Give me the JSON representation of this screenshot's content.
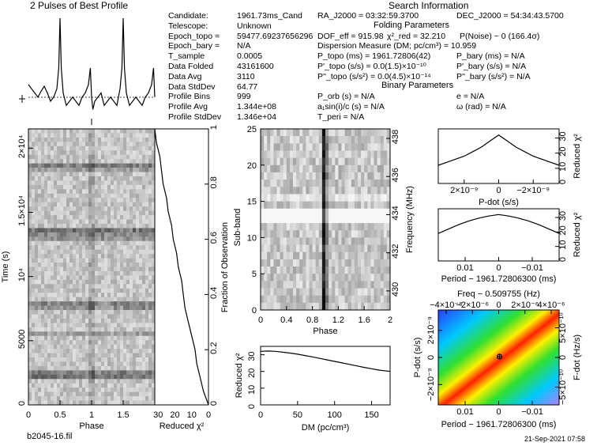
{
  "header": {
    "title": "2 Pulses of Best Profile",
    "search_info": "Search Information",
    "folding": "Folding Parameters",
    "binary": "Binary Parameters"
  },
  "params_left": [
    {
      "label": "Candidate:",
      "value": "1961.73ms_Cand"
    },
    {
      "label": "Telescope:",
      "value": "Unknown"
    },
    {
      "label": "Epoch_topo =",
      "value": "59477.69237656296"
    },
    {
      "label": "Epoch_bary =",
      "value": "N/A"
    },
    {
      "label": "T_sample",
      "value": "0.0005"
    },
    {
      "label": "Data Folded",
      "value": "43161600"
    },
    {
      "label": "Data Avg",
      "value": "3110"
    },
    {
      "label": "Data StdDev",
      "value": "64.77"
    },
    {
      "label": "Profile Bins",
      "value": "999"
    },
    {
      "label": "Profile Avg",
      "value": "1.344e+08"
    },
    {
      "label": "Profile StdDev",
      "value": "1.346e+04"
    }
  ],
  "search": {
    "ra": "RA_J2000 = 03:32:59.3700",
    "dec": "DEC_J2000 = 54:34:43.5700",
    "dof": "DOF_eff = 915.98",
    "chi": "χ²_red = 32.210",
    "pnoise": "P(Noise) ~ 0    (166.4σ)",
    "dm": "Dispersion Measure (DM; pc/cm³) = 10.959",
    "ptopo": "P_topo (ms) =    1961.72806(42)",
    "pbary": "P_bary (ms) = N/A",
    "pdtopo": "P'_topo (s/s) = 0.0(1.5)×10⁻¹⁰",
    "pdbary": "P'_bary (s/s) = N/A",
    "pddtopo": "P''_topo (s/s²) = 0.0(4.5)×10⁻¹⁴",
    "pddbary": "P''_bary (s/s²) = N/A",
    "porb": "P_orb (s) = N/A",
    "e": "e = N/A",
    "asini": "a₁sin(i)/c (s) = N/A",
    "omega": "ω (rad) = N/A",
    "tperi": "T_peri = N/A"
  },
  "footer": {
    "filename": "b2045-16.fil",
    "date": "21-Sep-2021 07:58"
  },
  "chart_data": [
    {
      "type": "line",
      "title": "2 Pulses of Best Profile",
      "x": [
        0.0,
        0.05,
        0.1,
        0.15,
        0.2,
        0.25,
        0.3,
        0.35,
        0.4,
        0.45,
        0.48,
        0.5,
        0.52,
        0.55,
        0.6,
        0.65,
        0.7,
        0.75,
        0.8,
        0.85,
        0.9,
        0.95,
        0.98,
        1.0,
        1.02,
        1.05,
        1.1,
        1.15,
        1.2,
        1.25,
        1.3,
        1.35,
        1.4,
        1.45,
        1.48,
        1.5,
        1.52,
        1.55,
        1.6,
        1.65,
        1.7,
        1.75,
        1.8,
        1.85,
        1.9,
        1.95,
        1.98,
        2.0
      ],
      "values": [
        0.2,
        0.15,
        0.1,
        0.05,
        0.12,
        0.18,
        0.1,
        0.0,
        0.05,
        0.15,
        0.4,
        1.0,
        0.4,
        0.1,
        -0.05,
        0.0,
        0.05,
        0.0,
        -0.05,
        0.05,
        0.1,
        0.2,
        0.4,
        0.05,
        -0.1,
        0.0,
        0.05,
        0.1,
        -0.05,
        0.0,
        0.05,
        0.0,
        -0.05,
        0.15,
        0.4,
        1.0,
        0.4,
        0.1,
        -0.05,
        0.0,
        0.05,
        0.0,
        -0.05,
        0.05,
        0.1,
        0.2,
        0.4,
        0.05
      ]
    },
    {
      "type": "heatmap",
      "name": "time-phase",
      "xlabel": "Phase",
      "ylabel": "Time (s)",
      "xlim": [
        0,
        2
      ],
      "ylim": [
        0,
        21500
      ],
      "x_ticks": [
        "0",
        "0.5",
        "1",
        "1.5"
      ],
      "y_ticks": [
        "0",
        "5000",
        "10⁴",
        "1.5×10⁴",
        "2×10⁴"
      ]
    },
    {
      "type": "line",
      "name": "reduced-chi2-vs-time",
      "xlabel": "Reduced χ²",
      "ylabel": "Fraction of Observation",
      "x_ticks": [
        "30",
        "20",
        "10",
        "0"
      ],
      "y_ticks": [
        "0",
        "0.2",
        "0.4",
        "0.6",
        "0.8",
        "1"
      ],
      "frac": [
        0.0,
        0.05,
        0.1,
        0.15,
        0.2,
        0.25,
        0.3,
        0.35,
        0.4,
        0.45,
        0.5,
        0.55,
        0.6,
        0.65,
        0.7,
        0.75,
        0.8,
        0.85,
        0.9,
        0.95,
        1.0
      ],
      "chi2": [
        0,
        3,
        5,
        7,
        8,
        10,
        12,
        14,
        15,
        16,
        18,
        19,
        21,
        22,
        24,
        25,
        27,
        28,
        29,
        31,
        32
      ]
    },
    {
      "type": "heatmap",
      "name": "subband-phase",
      "xlabel": "Phase",
      "ylabel": "Sub-band",
      "ylabel2": "Frequency (MHz)",
      "x_ticks": [
        "0",
        "0.4",
        "0.8",
        "1.2",
        "1.6",
        "2"
      ],
      "y_ticks": [
        "0",
        "5",
        "10",
        "15",
        "20",
        "25"
      ],
      "y2_ticks": [
        "430",
        "432",
        "434",
        "436",
        "438"
      ]
    },
    {
      "type": "line",
      "name": "reduced-chi2-vs-dm",
      "xlabel": "DM (pc/cm³)",
      "ylabel": "Reduced χ²",
      "x_ticks": [
        "0",
        "50",
        "100",
        "150"
      ],
      "y_ticks": [
        "0",
        "10",
        "20",
        "30"
      ],
      "x": [
        0,
        10,
        20,
        30,
        40,
        50,
        60,
        70,
        80,
        90,
        100,
        110,
        120,
        130,
        140,
        150,
        160,
        175
      ],
      "values": [
        32,
        32.2,
        32,
        31.5,
        31,
        30.3,
        29.5,
        28.7,
        27.8,
        26.9,
        26,
        25.1,
        24.2,
        23.3,
        22.4,
        21.6,
        20.8,
        20
      ]
    },
    {
      "type": "line",
      "name": "reduced-chi2-vs-pdot",
      "xlabel": "P-dot (s/s)",
      "ylabel": "Reduced χ²",
      "x_ticks": [
        "2×10⁻⁹",
        "0",
        "−2×10⁻⁹"
      ],
      "y_ticks": [
        "0",
        "10",
        "20",
        "30"
      ],
      "x": [
        3.5,
        3,
        2.5,
        2,
        1.5,
        1,
        0.5,
        0,
        -0.5,
        -1,
        -1.5,
        -2,
        -2.5,
        -3,
        -3.5
      ],
      "values": [
        12,
        14,
        16,
        18,
        21,
        24,
        28,
        32,
        28,
        24,
        21,
        18,
        16,
        14,
        12
      ]
    },
    {
      "type": "line",
      "name": "reduced-chi2-vs-period",
      "xlabel": "Period − 1961.72806300 (ms)",
      "ylabel": "Reduced χ²",
      "x_ticks": [
        "0.01",
        "0",
        "−0.01"
      ],
      "y_ticks": [
        "0",
        "10",
        "20",
        "30"
      ],
      "x": [
        0.018,
        0.015,
        0.012,
        0.009,
        0.006,
        0.003,
        0,
        -0.003,
        -0.006,
        -0.009,
        -0.012,
        -0.015,
        -0.018
      ],
      "values": [
        19,
        22,
        25,
        27.5,
        29.5,
        31,
        32,
        31,
        29.5,
        27.5,
        25,
        22,
        19
      ]
    },
    {
      "type": "heatmap",
      "name": "pdot-period",
      "title": "Freq − 0.509755 (Hz)",
      "xlabel": "Period − 1961.72806300 (ms)",
      "ylabel": "P-dot (s/s)",
      "ylabel2": "F-dot (Hz/s)",
      "x_ticks": [
        "0.01",
        "0",
        "−0.01"
      ],
      "top_ticks": [
        "−4×10⁻⁶",
        "−2×10⁻⁶",
        "0",
        "2×10⁻⁶",
        "4×10⁻⁶"
      ],
      "y_ticks": [
        "2×10⁻⁹",
        "0",
        "−2×10⁻⁹"
      ],
      "y2_ticks": [
        "5×10⁻¹⁰",
        "0",
        "−5×10⁻¹⁰"
      ]
    }
  ]
}
